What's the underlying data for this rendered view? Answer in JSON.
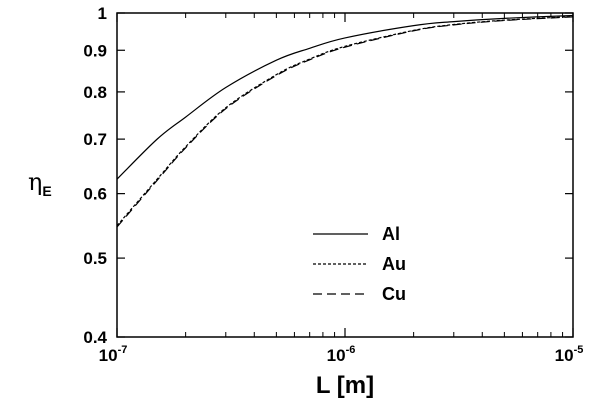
{
  "chart_data": {
    "type": "line",
    "xscale": "log",
    "yscale": "log",
    "xlim": [
      1e-07,
      1e-05
    ],
    "ylim": [
      0.4,
      1.0
    ],
    "xlabel": "L [m]",
    "ylabel": {
      "symbol": "η",
      "subscript": "E"
    },
    "x_ticks": [
      {
        "base": "10",
        "exp": "-7",
        "value": 1e-07
      },
      {
        "base": "10",
        "exp": "-6",
        "value": 1e-06
      },
      {
        "base": "10",
        "exp": "-5",
        "value": 1e-05
      }
    ],
    "y_ticks": [
      {
        "label": "0.4",
        "value": 0.4
      },
      {
        "label": "0.5",
        "value": 0.5
      },
      {
        "label": "0.6",
        "value": 0.6
      },
      {
        "label": "0.7",
        "value": 0.7
      },
      {
        "label": "0.8",
        "value": 0.8
      },
      {
        "label": "0.9",
        "value": 0.9
      },
      {
        "label": "1",
        "value": 1.0
      }
    ],
    "legend_position": "center-right",
    "grid": false,
    "series": [
      {
        "name": "Al",
        "style": "solid",
        "x": [
          1e-07,
          1.5e-07,
          2e-07,
          3e-07,
          5e-07,
          7e-07,
          1e-06,
          2e-06,
          3e-06,
          5e-06,
          1e-05
        ],
        "y": [
          0.625,
          0.7,
          0.745,
          0.81,
          0.875,
          0.905,
          0.932,
          0.965,
          0.976,
          0.985,
          0.993
        ]
      },
      {
        "name": "Au",
        "style": "dotted",
        "x": [
          1e-07,
          1.5e-07,
          2e-07,
          3e-07,
          5e-07,
          7e-07,
          1e-06,
          2e-06,
          3e-06,
          5e-06,
          1e-05
        ],
        "y": [
          0.548,
          0.625,
          0.685,
          0.765,
          0.84,
          0.878,
          0.91,
          0.952,
          0.968,
          0.98,
          0.99
        ]
      },
      {
        "name": "Cu",
        "style": "dashed",
        "x": [
          1e-07,
          1.5e-07,
          2e-07,
          3e-07,
          5e-07,
          7e-07,
          1e-06,
          2e-06,
          3e-06,
          5e-06,
          1e-05
        ],
        "y": [
          0.546,
          0.623,
          0.683,
          0.763,
          0.838,
          0.876,
          0.908,
          0.951,
          0.967,
          0.979,
          0.989
        ]
      }
    ]
  }
}
